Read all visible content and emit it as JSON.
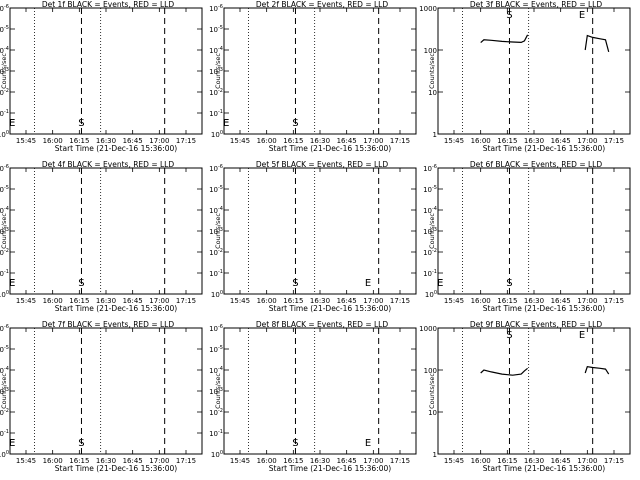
{
  "chart_data": [
    {
      "type": "line",
      "title": "Det 1f BLACK = Events, RED = LLD",
      "xlabel": "Start Time (21-Dec-16 15:36:00)",
      "ylabel": "Counts/sec",
      "scale": "log",
      "ylim": [
        1,
        1000
      ],
      "ytick_labels": [
        "10^0",
        "10^-1",
        "10^-2",
        "10^-3",
        "10^-4",
        "10^-5",
        "10^-6"
      ],
      "xtick_labels": [
        "15:45",
        "16:00",
        "16:15",
        "16:30",
        "16:45",
        "17:00",
        "17:15"
      ],
      "markers": [
        "E",
        "S",
        "E"
      ],
      "series": []
    },
    {
      "type": "line",
      "title": "Det 2f BLACK = Events, RED = LLD",
      "xlabel": "Start Time (21-Dec-16 15:36:00)",
      "ylabel": "Counts/sec",
      "scale": "log",
      "ylim": [
        1,
        1000
      ],
      "ytick_labels": [
        "10^0",
        "10^-1",
        "10^-2",
        "10^-3",
        "10^-4",
        "10^-5",
        "10^-6"
      ],
      "xtick_labels": [
        "15:45",
        "16:00",
        "16:15",
        "16:30",
        "16:45",
        "17:00",
        "17:15"
      ],
      "markers": [
        "E",
        "S",
        "E"
      ],
      "series": []
    },
    {
      "type": "line",
      "title": "Det 3f BLACK = Events, RED = LLD",
      "xlabel": "Start Time (21-Dec-16 15:36:00)",
      "ylabel": "Counts/sec",
      "scale": "log",
      "ylim": [
        1,
        1000
      ],
      "ytick_labels": [
        "1",
        "10",
        "100",
        "1000"
      ],
      "xtick_labels": [
        "15:45",
        "16:00",
        "16:15",
        "16:30",
        "16:45",
        "17:00",
        "17:15"
      ],
      "markers": [
        "S",
        "E"
      ],
      "series": [
        {
          "x": [
            16.0,
            16.03,
            16.1,
            16.2,
            16.3,
            16.38,
            16.41,
            16.44
          ],
          "values": [
            150,
            175,
            170,
            160,
            155,
            152,
            165,
            230
          ]
        },
        {
          "x": [
            16.98,
            17.0,
            17.05,
            17.12,
            17.17,
            17.2
          ],
          "values": [
            100,
            220,
            200,
            185,
            175,
            90
          ]
        }
      ]
    },
    {
      "type": "line",
      "title": "Det 4f BLACK = Events, RED = LLD",
      "xlabel": "Start Time (21-Dec-16 15:36:00)",
      "ylabel": "Counts/sec",
      "scale": "log",
      "ylim": [
        1,
        1000
      ],
      "ytick_labels": [
        "10^0",
        "10^-1",
        "10^-2",
        "10^-3",
        "10^-4",
        "10^-5",
        "10^-6"
      ],
      "xtick_labels": [
        "15:45",
        "16:00",
        "16:15",
        "16:30",
        "16:45",
        "17:00",
        "17:15"
      ],
      "markers": [
        "E",
        "S",
        "E"
      ],
      "series": []
    },
    {
      "type": "line",
      "title": "Det 5f BLACK = Events, RED = LLD",
      "xlabel": "Start Time (21-Dec-16 15:36:00)",
      "ylabel": "Counts/sec",
      "scale": "log",
      "ylim": [
        1,
        1000
      ],
      "ytick_labels": [
        "10^0",
        "10^-1",
        "10^-2",
        "10^-3",
        "10^-4",
        "10^-5",
        "10^-6"
      ],
      "xtick_labels": [
        "15:45",
        "16:00",
        "16:15",
        "16:30",
        "16:45",
        "17:00",
        "17:15"
      ],
      "markers": [
        "S",
        "E"
      ],
      "series": []
    },
    {
      "type": "line",
      "title": "Det 6f BLACK = Events, RED = LLD",
      "xlabel": "Start Time (21-Dec-16 15:36:00)",
      "ylabel": "Counts/sec",
      "scale": "log",
      "ylim": [
        1,
        1000
      ],
      "ytick_labels": [
        "10^0",
        "10^-1",
        "10^-2",
        "10^-3",
        "10^-4",
        "10^-5",
        "10^-6"
      ],
      "xtick_labels": [
        "15:45",
        "16:00",
        "16:15",
        "16:30",
        "16:45",
        "17:00",
        "17:15"
      ],
      "markers": [
        "E",
        "S",
        "E"
      ],
      "series": []
    },
    {
      "type": "line",
      "title": "Det 7f BLACK = Events, RED = LLD",
      "xlabel": "Start Time (21-Dec-16 15:36:00)",
      "ylabel": "Counts/sec",
      "scale": "log",
      "ylim": [
        1,
        1000
      ],
      "ytick_labels": [
        "10^0",
        "10^-1",
        "10^-2",
        "10^-3",
        "10^-4",
        "10^-5",
        "10^-6"
      ],
      "xtick_labels": [
        "15:45",
        "16:00",
        "16:15",
        "16:30",
        "16:45",
        "17:00",
        "17:15"
      ],
      "markers": [
        "E",
        "S",
        "E"
      ],
      "series": []
    },
    {
      "type": "line",
      "title": "Det 8f BLACK = Events, RED = LLD",
      "xlabel": "Start Time (21-Dec-16 15:36:00)",
      "ylabel": "Counts/sec",
      "scale": "log",
      "ylim": [
        1,
        1000
      ],
      "ytick_labels": [
        "10^0",
        "10^-1",
        "10^-2",
        "10^-3",
        "10^-4",
        "10^-5",
        "10^-6"
      ],
      "xtick_labels": [
        "15:45",
        "16:00",
        "16:15",
        "16:30",
        "16:45",
        "17:00",
        "17:15"
      ],
      "markers": [
        "S",
        "E"
      ],
      "series": []
    },
    {
      "type": "line",
      "title": "Det 9f BLACK = Events, RED = LLD",
      "xlabel": "Start Time (21-Dec-16 15:36:00)",
      "ylabel": "Counts/sec",
      "scale": "log",
      "ylim": [
        1,
        1000
      ],
      "ytick_labels": [
        "1",
        "10",
        "100",
        "1000"
      ],
      "xtick_labels": [
        "15:45",
        "16:00",
        "16:15",
        "16:30",
        "16:45",
        "17:00",
        "17:15"
      ],
      "markers": [
        "S",
        "E"
      ],
      "series": [
        {
          "x": [
            16.0,
            16.03,
            16.1,
            16.2,
            16.3,
            16.38,
            16.41,
            16.44
          ],
          "values": [
            85,
            100,
            90,
            80,
            75,
            80,
            95,
            110
          ]
        },
        {
          "x": [
            16.98,
            17.0,
            17.05,
            17.12,
            17.17,
            17.2
          ],
          "values": [
            85,
            120,
            115,
            110,
            105,
            80
          ]
        }
      ]
    }
  ]
}
